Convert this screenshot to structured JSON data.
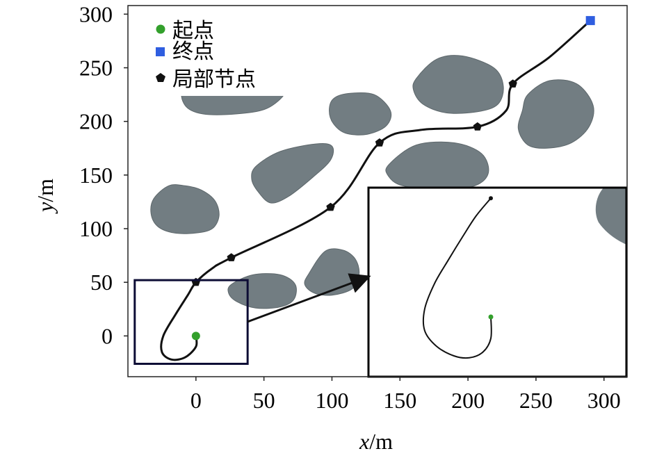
{
  "chart_data": {
    "type": "scatter",
    "xlabel": {
      "var": "x",
      "unit": "/m"
    },
    "ylabel": {
      "var": "y",
      "unit": "/m"
    },
    "xlim": [
      -50,
      317
    ],
    "ylim": [
      -38,
      308
    ],
    "xticks": [
      0,
      50,
      100,
      150,
      200,
      250,
      300
    ],
    "yticks": [
      0,
      50,
      100,
      150,
      200,
      250,
      300
    ],
    "legend": {
      "placement": "top-left",
      "entries": [
        {
          "label": "起点",
          "marker": "circle",
          "color": "#33a02c"
        },
        {
          "label": "终点",
          "marker": "square",
          "color": "#2f5ee0"
        },
        {
          "label": "局部节点",
          "marker": "pentagon",
          "color": "#111111"
        }
      ]
    },
    "series": [
      {
        "label": "起点",
        "points": [
          [
            0,
            0
          ]
        ]
      },
      {
        "label": "终点",
        "points": [
          [
            290,
            294
          ]
        ]
      },
      {
        "label": "局部节点",
        "points": [
          [
            0,
            50
          ],
          [
            26,
            73
          ],
          [
            99,
            120
          ],
          [
            135,
            180
          ],
          [
            207,
            195
          ],
          [
            233,
            235
          ]
        ]
      }
    ],
    "path": [
      [
        0,
        0
      ],
      [
        0,
        -10
      ],
      [
        -8,
        -20
      ],
      [
        -18,
        -22
      ],
      [
        -25,
        -15
      ],
      [
        -24,
        0
      ],
      [
        -15,
        20
      ],
      [
        -6,
        38
      ],
      [
        0,
        50
      ],
      [
        12,
        63
      ],
      [
        26,
        73
      ],
      [
        99,
        120
      ],
      [
        135,
        180
      ],
      [
        165,
        192
      ],
      [
        207,
        195
      ],
      [
        228,
        210
      ],
      [
        233,
        235
      ],
      [
        260,
        260
      ],
      [
        290,
        294
      ]
    ],
    "obstacles": [
      [
        [
          -20,
          140
        ],
        [
          -8,
          140
        ],
        [
          4,
          136
        ],
        [
          14,
          126
        ],
        [
          17,
          112
        ],
        [
          12,
          100
        ],
        [
          0,
          96
        ],
        [
          -16,
          96
        ],
        [
          -28,
          102
        ],
        [
          -33,
          114
        ],
        [
          -31,
          128
        ]
      ],
      [
        [
          26,
          48
        ],
        [
          42,
          57
        ],
        [
          62,
          57
        ],
        [
          73,
          48
        ],
        [
          72,
          34
        ],
        [
          62,
          27
        ],
        [
          44,
          26
        ],
        [
          30,
          32
        ],
        [
          24,
          40
        ]
      ],
      [
        [
          83,
          58
        ],
        [
          95,
          79
        ],
        [
          108,
          80
        ],
        [
          117,
          72
        ],
        [
          120,
          58
        ],
        [
          115,
          44
        ],
        [
          100,
          38
        ],
        [
          87,
          40
        ],
        [
          80,
          48
        ]
      ],
      [
        [
          44,
          158
        ],
        [
          62,
          172
        ],
        [
          88,
          179
        ],
        [
          100,
          177
        ],
        [
          99,
          164
        ],
        [
          86,
          148
        ],
        [
          68,
          130
        ],
        [
          55,
          124
        ],
        [
          46,
          134
        ],
        [
          41,
          146
        ]
      ],
      [
        [
          142,
          160
        ],
        [
          162,
          178
        ],
        [
          190,
          180
        ],
        [
          210,
          170
        ],
        [
          215,
          152
        ],
        [
          205,
          140
        ],
        [
          182,
          137
        ],
        [
          152,
          140
        ],
        [
          141,
          150
        ]
      ],
      [
        [
          101,
          221
        ],
        [
          112,
          226
        ],
        [
          131,
          225
        ],
        [
          143,
          210
        ],
        [
          140,
          196
        ],
        [
          126,
          188
        ],
        [
          110,
          189
        ],
        [
          101,
          198
        ],
        [
          98,
          210
        ]
      ],
      [
        [
          162,
          240
        ],
        [
          177,
          258
        ],
        [
          196,
          261
        ],
        [
          219,
          250
        ],
        [
          226,
          233
        ],
        [
          222,
          216
        ],
        [
          207,
          209
        ],
        [
          184,
          208
        ],
        [
          167,
          216
        ],
        [
          160,
          229
        ]
      ],
      [
        [
          240,
          210
        ],
        [
          244,
          225
        ],
        [
          260,
          238
        ],
        [
          280,
          235
        ],
        [
          292,
          215
        ],
        [
          289,
          195
        ],
        [
          276,
          180
        ],
        [
          258,
          175
        ],
        [
          244,
          178
        ],
        [
          237,
          193
        ]
      ],
      [
        [
          -8,
          230
        ],
        [
          20,
          230
        ],
        [
          55,
          230
        ],
        [
          65,
          226
        ],
        [
          52,
          212
        ],
        [
          30,
          207
        ],
        [
          5,
          207
        ],
        [
          -8,
          215
        ]
      ]
    ],
    "inset": {
      "source_region": {
        "x": [
          -45,
          38
        ],
        "y": [
          -26,
          52
        ]
      },
      "path": [
        [
          0,
          0
        ],
        [
          0,
          -22
        ],
        [
          -8,
          -36
        ],
        [
          -22,
          -42
        ],
        [
          -38,
          -40
        ],
        [
          -56,
          -30
        ],
        [
          -68,
          -14
        ],
        [
          -68,
          8
        ],
        [
          -58,
          34
        ],
        [
          -44,
          58
        ],
        [
          -28,
          84
        ],
        [
          -15,
          104
        ],
        [
          0,
          122
        ]
      ],
      "start": [
        0,
        0
      ],
      "node": [
        0,
        122
      ],
      "obstacle_edge": true
    }
  }
}
